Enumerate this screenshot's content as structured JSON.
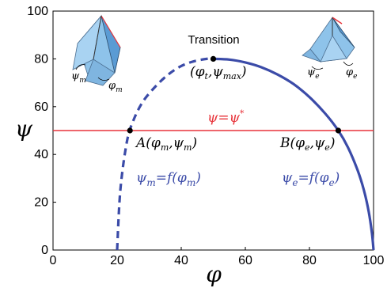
{
  "chart_data": {
    "type": "line",
    "xlabel": "φ",
    "ylabel": "ψ",
    "xlim": [
      0,
      100
    ],
    "ylim": [
      0,
      100
    ],
    "xticks": [
      0,
      20,
      40,
      60,
      80,
      100
    ],
    "yticks": [
      0,
      20,
      40,
      60,
      80,
      100
    ],
    "grid": false,
    "series": [
      {
        "style": "dashed",
        "color": "#3B4BA8",
        "x": [
          20,
          21,
          23,
          25,
          28,
          32,
          36,
          40,
          44,
          48,
          50
        ],
        "y": [
          0,
          25,
          45,
          54,
          62,
          68.5,
          73.5,
          77,
          79,
          80,
          80
        ]
      },
      {
        "style": "solid",
        "color": "#3B4BA8",
        "x": [
          50,
          55,
          60,
          65,
          70,
          75,
          80,
          85,
          89,
          92,
          95,
          97,
          98.5,
          99.5,
          100
        ],
        "y": [
          80,
          79.7,
          78.5,
          76.5,
          73.5,
          69.5,
          64,
          57,
          50,
          43,
          33.5,
          25,
          16,
          7,
          0
        ]
      },
      {
        "style": "solid",
        "color": "#E8343B",
        "x": [
          0,
          100
        ],
        "y": [
          50,
          50
        ]
      }
    ],
    "points": [
      {
        "x": 50,
        "y": 80
      },
      {
        "x": 24,
        "y": 50
      },
      {
        "x": 89,
        "y": 50
      }
    ]
  },
  "annotations": {
    "transition": "Transition",
    "transition_point": "(φ",
    "transition_point_sub1": "t",
    "transition_point_mid": ",ψ",
    "transition_point_sub2": "max",
    "transition_point_end": ")",
    "constraint_line": "ψ=ψ",
    "constraint_star": "*",
    "point_a": "A(φ",
    "point_a_sub1": "m",
    "point_a_mid": ",ψ",
    "point_a_sub2": "m",
    "point_a_end": ")",
    "point_b": "B(φ",
    "point_b_sub1": "e",
    "point_b_mid": ",ψ",
    "point_b_sub2": "e",
    "point_b_end": ")",
    "relation_m_1": "ψ",
    "relation_m_2": "m",
    "relation_m_3": "=f(φ",
    "relation_m_4": "m",
    "relation_m_5": ")",
    "relation_e_1": "ψ",
    "relation_e_2": "e",
    "relation_e_3": "=f(φ",
    "relation_e_4": "e",
    "relation_e_5": ")",
    "inset_left_psi": "ψ",
    "inset_left_psi_sub": "m",
    "inset_left_phi": "φ",
    "inset_left_phi_sub": "m",
    "inset_right_psi": "ψ",
    "inset_right_psi_sub": "e",
    "inset_right_phi": "φ",
    "inset_right_phi_sub": "e"
  },
  "colors": {
    "curve": "#3B4BA8",
    "constraint": "#E8343B",
    "relation_text": "#3B4BA8",
    "constraint_text": "#E8343B"
  }
}
